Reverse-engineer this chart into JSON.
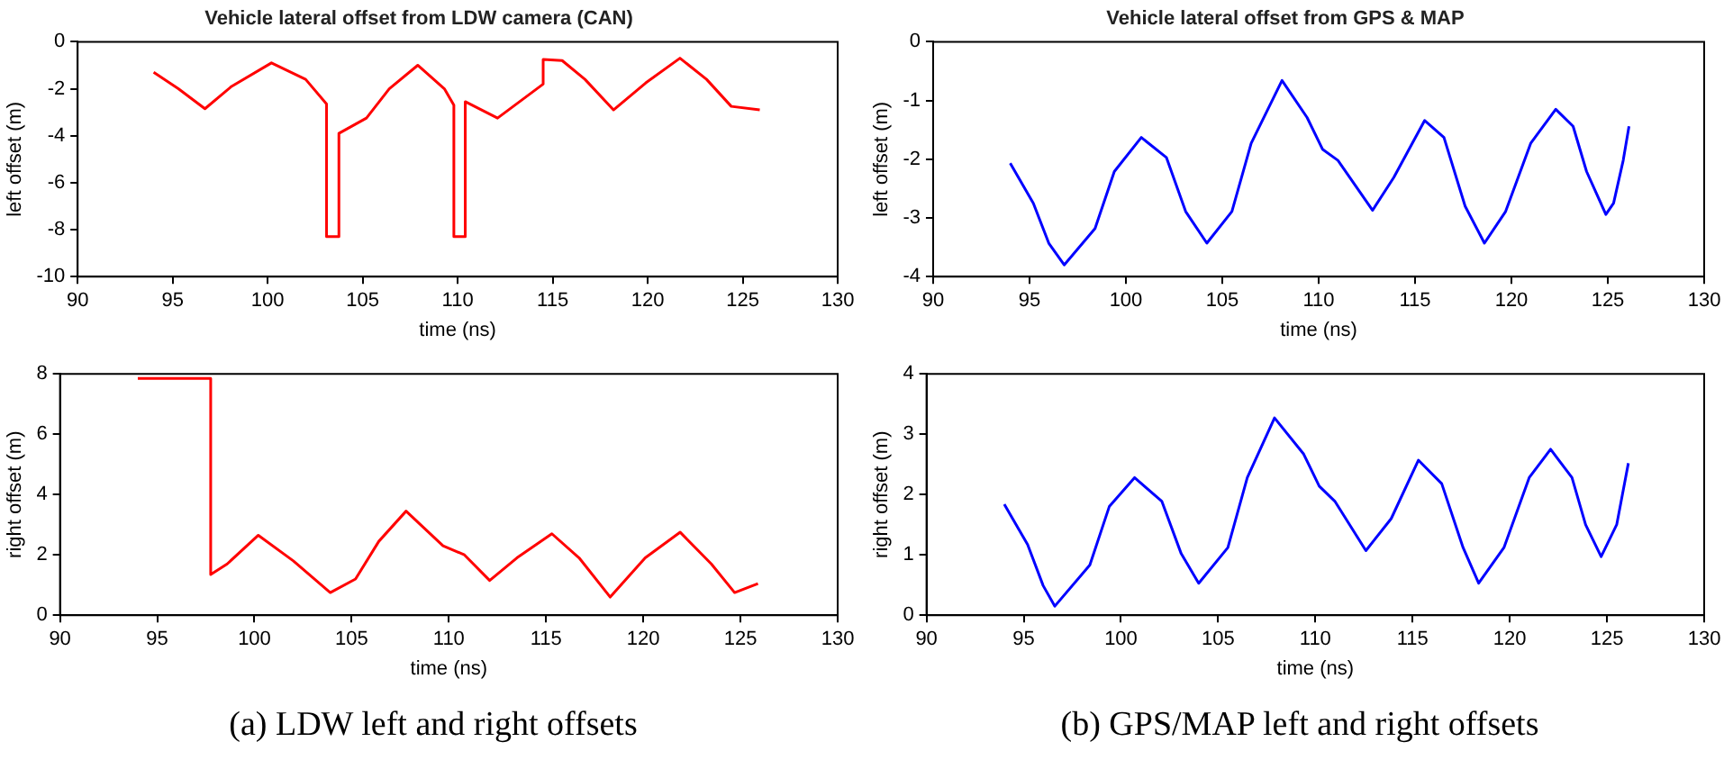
{
  "chart_data": [
    {
      "type": "line",
      "title": "Vehicle lateral offset from LDW camera (CAN)",
      "xlabel": "time (ns)",
      "ylabel": "left offset (m)",
      "color": "#ff0000",
      "xlim": [
        90,
        130
      ],
      "xticks": [
        90,
        95,
        100,
        105,
        110,
        115,
        120,
        125,
        130
      ],
      "ylim": [
        -10,
        0
      ],
      "yticks": [
        -10,
        -8,
        -6,
        -4,
        -2,
        0
      ],
      "x": [
        94.0,
        95.3,
        96.7,
        98.1,
        100.2,
        102.0,
        103.1,
        103.1,
        103.75,
        103.75,
        105.2,
        106.4,
        107.9,
        109.3,
        109.8,
        109.8,
        110.4,
        110.4,
        112.1,
        114.5,
        114.5,
        115.5,
        116.7,
        118.2,
        119.9,
        121.7,
        123.1,
        124.4,
        125.9
      ],
      "values": [
        -1.3,
        -2.0,
        -2.85,
        -1.9,
        -0.9,
        -1.6,
        -2.65,
        -8.3,
        -8.3,
        -3.9,
        -3.25,
        -2.0,
        -1.0,
        -2.0,
        -2.7,
        -8.3,
        -8.3,
        -2.55,
        -3.25,
        -1.8,
        -0.75,
        -0.8,
        -1.6,
        -2.9,
        -1.75,
        -0.7,
        -1.6,
        -2.75,
        -2.9
      ]
    },
    {
      "type": "line",
      "title": "Vehicle lateral offset from GPS & MAP",
      "xlabel": "time (ns)",
      "ylabel": "left offset (m)",
      "color": "#0000ff",
      "xlim": [
        90,
        130
      ],
      "xticks": [
        90,
        95,
        100,
        105,
        110,
        115,
        120,
        125,
        130
      ],
      "ylim": [
        -4,
        0
      ],
      "yticks": [
        -4,
        -3,
        -2,
        -1,
        0
      ],
      "x": [
        94.0,
        95.2,
        96.0,
        96.8,
        98.4,
        99.4,
        100.8,
        102.1,
        103.1,
        104.2,
        105.5,
        106.5,
        108.1,
        109.4,
        110.2,
        111.0,
        112.8,
        113.9,
        115.5,
        116.5,
        117.6,
        118.6,
        119.7,
        121.0,
        122.3,
        123.2,
        123.9,
        124.9,
        125.3,
        125.8,
        126.1
      ],
      "values": [
        -2.07,
        -2.75,
        -3.43,
        -3.8,
        -3.18,
        -2.21,
        -1.63,
        -1.97,
        -2.89,
        -3.43,
        -2.89,
        -1.73,
        -0.66,
        -1.29,
        -1.83,
        -2.02,
        -2.87,
        -2.31,
        -1.34,
        -1.63,
        -2.8,
        -3.43,
        -2.89,
        -1.73,
        -1.15,
        -1.44,
        -2.21,
        -2.94,
        -2.75,
        -2.02,
        -1.44
      ]
    },
    {
      "type": "line",
      "xlabel": "time (ns)",
      "ylabel": "right offset (m)",
      "color": "#ff0000",
      "xlim": [
        90,
        130
      ],
      "xticks": [
        90,
        95,
        100,
        105,
        110,
        115,
        120,
        125,
        130
      ],
      "ylim": [
        0,
        8
      ],
      "yticks": [
        0,
        2,
        4,
        6,
        8
      ],
      "annotations": [
        "(a) LDW left and right offsets"
      ],
      "x": [
        94.0,
        97.75,
        97.75,
        98.6,
        100.2,
        102.0,
        103.9,
        105.2,
        106.4,
        107.8,
        109.7,
        110.8,
        112.1,
        113.5,
        115.3,
        116.7,
        118.3,
        120.1,
        121.9,
        123.5,
        124.7,
        125.9
      ],
      "values": [
        7.85,
        7.85,
        1.35,
        1.7,
        2.65,
        1.8,
        0.75,
        1.2,
        2.45,
        3.45,
        2.3,
        2.0,
        1.15,
        1.9,
        2.7,
        1.9,
        0.6,
        1.9,
        2.75,
        1.7,
        0.75,
        1.05
      ]
    },
    {
      "type": "line",
      "xlabel": "time (ns)",
      "ylabel": "right offset (m)",
      "color": "#0000ff",
      "xlim": [
        90,
        130
      ],
      "xticks": [
        90,
        95,
        100,
        105,
        110,
        115,
        120,
        125,
        130
      ],
      "ylim": [
        0,
        4
      ],
      "yticks": [
        0,
        1,
        2,
        3,
        4
      ],
      "annotations": [
        "(b) GPS/MAP left and right offsets"
      ],
      "x": [
        94.0,
        95.2,
        96.0,
        96.6,
        98.4,
        99.4,
        100.7,
        102.1,
        103.1,
        104.0,
        105.5,
        106.5,
        107.9,
        109.4,
        110.2,
        111.0,
        112.6,
        113.9,
        115.3,
        116.5,
        117.6,
        118.4,
        119.7,
        121.0,
        122.1,
        123.2,
        123.9,
        124.7,
        125.5,
        126.1
      ],
      "values": [
        1.84,
        1.17,
        0.49,
        0.15,
        0.83,
        1.8,
        2.28,
        1.89,
        1.02,
        0.53,
        1.12,
        2.28,
        3.27,
        2.67,
        2.14,
        1.89,
        1.07,
        1.6,
        2.57,
        2.18,
        1.12,
        0.53,
        1.12,
        2.28,
        2.75,
        2.28,
        1.5,
        0.97,
        1.5,
        2.52
      ]
    }
  ]
}
